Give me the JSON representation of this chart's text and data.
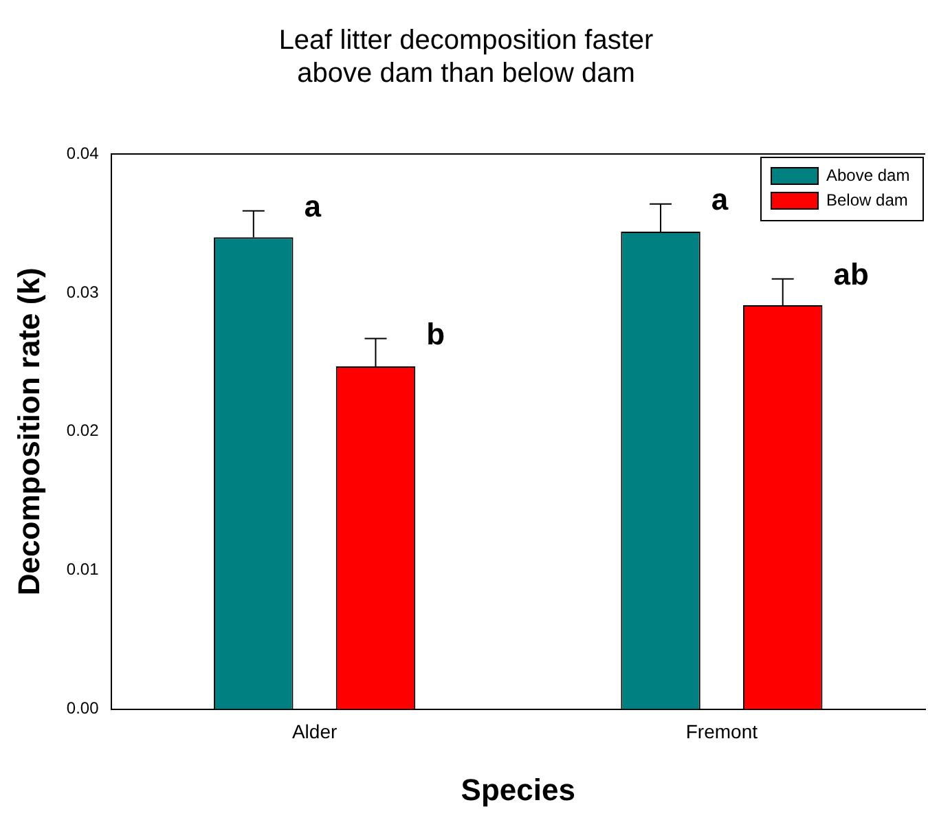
{
  "chart_data": {
    "type": "bar",
    "title": "Leaf litter decomposition faster\nabove dam than below dam",
    "xlabel": "Species",
    "ylabel": "Decomposition rate (k)",
    "categories": [
      "Alder",
      "Fremont"
    ],
    "series": [
      {
        "name": "Above dam",
        "color": "#008080",
        "values": [
          0.034,
          0.0344
        ],
        "errors": [
          0.0019,
          0.002
        ]
      },
      {
        "name": "Below dam",
        "color": "#ff0000",
        "values": [
          0.0247,
          0.0291
        ],
        "errors": [
          0.002,
          0.0019
        ]
      }
    ],
    "ylim": [
      0,
      0.04
    ],
    "yticks": [
      {
        "value": 0,
        "label": "0.00"
      },
      {
        "value": 0.01,
        "label": "0.01"
      },
      {
        "value": 0.02,
        "label": "0.02"
      },
      {
        "value": 0.03,
        "label": "0.03"
      },
      {
        "value": 0.04,
        "label": "0.04"
      }
    ],
    "annotations": [
      "a",
      "b",
      "a",
      "ab"
    ],
    "legend": "top right",
    "grid": false
  }
}
